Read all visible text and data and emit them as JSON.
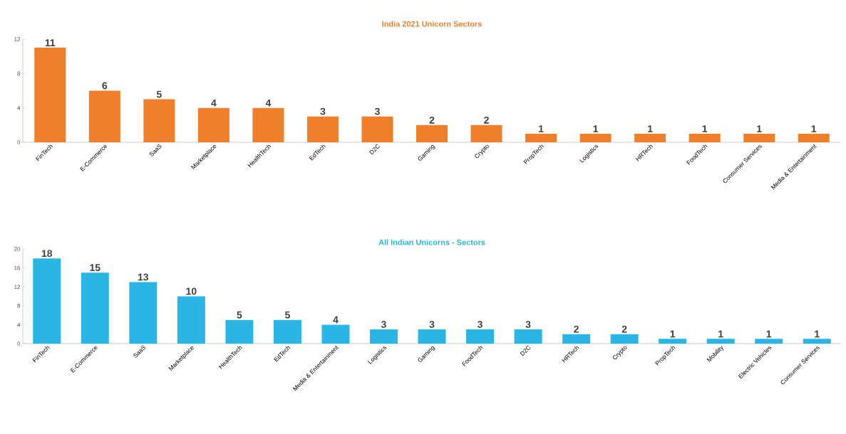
{
  "chart_data": [
    {
      "type": "bar",
      "title": "India 2021 Unicorn Sectors",
      "categories": [
        "FinTech",
        "E-Commerce",
        "SaaS",
        "Marketplace",
        "HealthTech",
        "EdTech",
        "D2C",
        "Gaming",
        "Crypto",
        "PropTech",
        "Logistics",
        "HRTech",
        "FoodTech",
        "Consumer Services",
        "Media & Entertainment"
      ],
      "values": [
        11,
        6,
        5,
        4,
        4,
        3,
        3,
        2,
        2,
        1,
        1,
        1,
        1,
        1,
        1
      ],
      "color": "#f07f2a",
      "ylim": [
        0,
        12
      ],
      "yticks": [
        0,
        4,
        8,
        12
      ],
      "data_labels": true
    },
    {
      "type": "bar",
      "title": "All Indian Unicorns - Sectors",
      "categories": [
        "FinTech",
        "E-Commerce",
        "SaaS",
        "Marketplace",
        "HealthTech",
        "EdTech",
        "Media & Entertainment",
        "Logistics",
        "Gaming",
        "FoodTech",
        "D2C",
        "HRTech",
        "Crypto",
        "PropTech",
        "Mobility",
        "Electric Vehicles",
        "Consumer Services"
      ],
      "values": [
        18,
        15,
        13,
        10,
        5,
        5,
        4,
        3,
        3,
        3,
        3,
        2,
        2,
        1,
        1,
        1,
        1
      ],
      "color": "#29b6e6",
      "ylim": [
        0,
        20
      ],
      "yticks": [
        0,
        4,
        8,
        12,
        16,
        20
      ],
      "data_labels": true
    }
  ]
}
